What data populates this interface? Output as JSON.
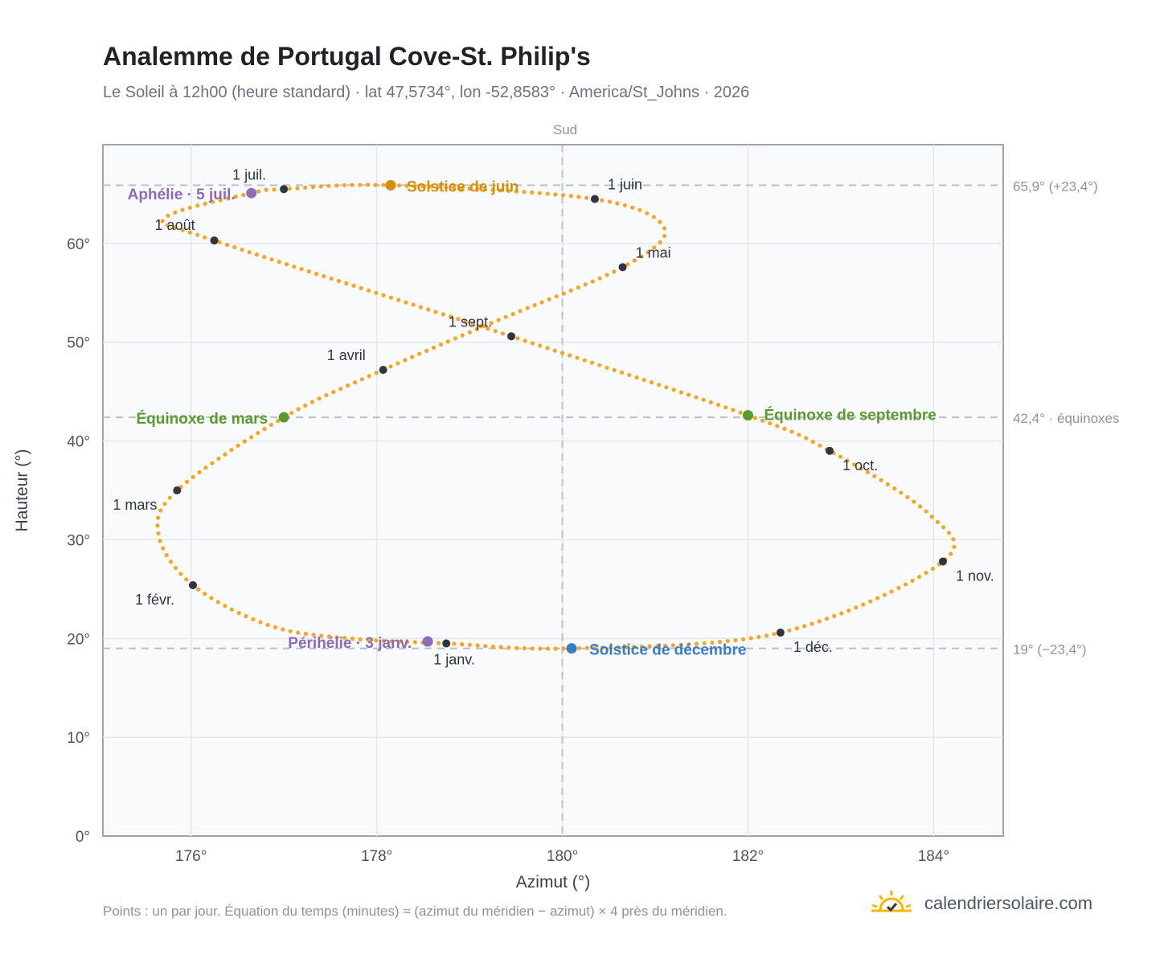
{
  "header": {
    "title": "Analemme de Portugal Cove-St. Philip's",
    "subtitle": "Le Soleil à 12h00 (heure standard) · lat 47,5734°, lon -52,8583° · America/St_Johns · 2026"
  },
  "footer": {
    "note": "Points : un par jour. Équation du temps (minutes) ≈ (azimut du méridien − azimut) × 4 près du méridien.",
    "brand": "calendriersolaire.com"
  },
  "colors": {
    "curve": "#f5a623",
    "month_marker": "#2f3640",
    "solstice_june": "#d4900a",
    "solstice_december": "#3a7bc8",
    "equinox": "#5a9a2e",
    "apsis": "#8e6bb8",
    "grid": "#e3e8ee",
    "plot_bg": "#f8fafc",
    "frame": "#9aa4b2",
    "reference_line": "#b8c2cc"
  },
  "chart_data": {
    "type": "scatter",
    "xlabel": "Azimut (°)",
    "ylabel": "Hauteur (°)",
    "top_label": "Sud",
    "xlim": [
      175.05,
      184.75
    ],
    "ylim": [
      0,
      70
    ],
    "x_ticks": [
      176,
      178,
      180,
      182,
      184
    ],
    "x_tick_labels": [
      "176°",
      "178°",
      "180°",
      "182°",
      "184°"
    ],
    "y_ticks": [
      0,
      10,
      20,
      30,
      40,
      50,
      60
    ],
    "y_tick_labels": [
      "0°",
      "10°",
      "20°",
      "30°",
      "40°",
      "50°",
      "60°"
    ],
    "meridian_azimuth": 180,
    "reference_lines": [
      {
        "y": 65.9,
        "label": "65,9° (+23,4°)"
      },
      {
        "y": 42.4,
        "label": "42,4° · équinoxes"
      },
      {
        "y": 19.0,
        "label": "19° (−23,4°)"
      }
    ],
    "analemma_path": [
      {
        "x": 178.75,
        "y": 19.5
      },
      {
        "x": 177.72,
        "y": 20.0
      },
      {
        "x": 176.85,
        "y": 21.3
      },
      {
        "x": 176.02,
        "y": 25.4
      },
      {
        "x": 175.65,
        "y": 30.5
      },
      {
        "x": 175.85,
        "y": 35.0
      },
      {
        "x": 177.0,
        "y": 42.4
      },
      {
        "x": 178.07,
        "y": 47.2
      },
      {
        "x": 179.3,
        "y": 52.2
      },
      {
        "x": 180.65,
        "y": 57.6
      },
      {
        "x": 181.1,
        "y": 61.5
      },
      {
        "x": 180.35,
        "y": 64.5
      },
      {
        "x": 178.15,
        "y": 65.9
      },
      {
        "x": 177.0,
        "y": 65.5
      },
      {
        "x": 176.65,
        "y": 65.1
      },
      {
        "x": 175.72,
        "y": 62.6
      },
      {
        "x": 176.25,
        "y": 60.3
      },
      {
        "x": 179.45,
        "y": 50.6
      },
      {
        "x": 182.0,
        "y": 42.6
      },
      {
        "x": 182.88,
        "y": 39.0
      },
      {
        "x": 183.95,
        "y": 32.6
      },
      {
        "x": 184.1,
        "y": 27.8
      },
      {
        "x": 182.35,
        "y": 20.6
      },
      {
        "x": 180.1,
        "y": 19.0
      },
      {
        "x": 178.75,
        "y": 19.5
      }
    ],
    "month_markers": [
      {
        "label": "1 janv.",
        "x": 178.75,
        "y": 19.5
      },
      {
        "label": "1 févr.",
        "x": 176.02,
        "y": 25.4
      },
      {
        "label": "1 mars",
        "x": 175.85,
        "y": 35.0
      },
      {
        "label": "1 avril",
        "x": 178.07,
        "y": 47.2
      },
      {
        "label": "1 mai",
        "x": 180.65,
        "y": 57.6
      },
      {
        "label": "1 juin",
        "x": 180.35,
        "y": 64.5
      },
      {
        "label": "1 juil.",
        "x": 177.0,
        "y": 65.5
      },
      {
        "label": "1 août",
        "x": 176.25,
        "y": 60.3
      },
      {
        "label": "1 sept.",
        "x": 179.45,
        "y": 50.6
      },
      {
        "label": "1 oct.",
        "x": 182.88,
        "y": 39.0
      },
      {
        "label": "1 nov.",
        "x": 184.1,
        "y": 27.8
      },
      {
        "label": "1 déc.",
        "x": 182.35,
        "y": 20.6
      }
    ],
    "events": [
      {
        "label": "Solstice de juin",
        "x": 178.15,
        "y": 65.9,
        "kind": "solstice_june"
      },
      {
        "label": "Solstice de décembre",
        "x": 180.1,
        "y": 19.0,
        "kind": "solstice_december"
      },
      {
        "label": "Équinoxe de mars",
        "x": 177.0,
        "y": 42.4,
        "kind": "equinox"
      },
      {
        "label": "Équinoxe de septembre",
        "x": 182.0,
        "y": 42.6,
        "kind": "equinox"
      },
      {
        "label": "Aphélie · 5 juil.",
        "x": 176.65,
        "y": 65.1,
        "kind": "apsis"
      },
      {
        "label": "Périhélie · 3 janv.",
        "x": 178.55,
        "y": 19.7,
        "kind": "apsis"
      }
    ]
  }
}
